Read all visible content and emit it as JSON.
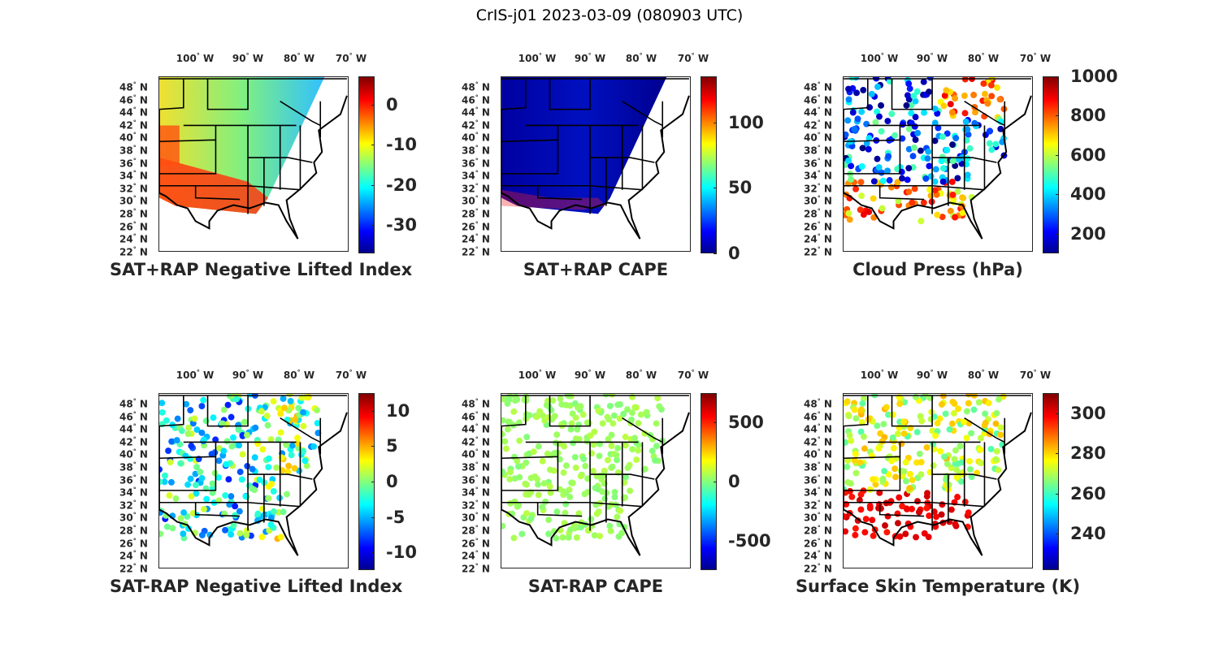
{
  "title": "CrIS-j01 2023-03-09 (080903 UTC)",
  "lat_labels": [
    "48",
    "46",
    "44",
    "42",
    "40",
    "38",
    "36",
    "34",
    "32",
    "30",
    "28",
    "26",
    "24",
    "22"
  ],
  "lat_values": [
    48,
    46,
    44,
    42,
    40,
    38,
    36,
    34,
    32,
    30,
    28,
    26,
    24,
    22
  ],
  "lon_labels": [
    "100",
    "90",
    "80",
    "70"
  ],
  "lon_values": [
    -100,
    -90,
    -80,
    -70
  ],
  "hemisphere": {
    "north": "N",
    "west": "W"
  },
  "colormap": "jet",
  "panels": [
    {
      "title": "SAT+RAP Negative Lifted Index",
      "clim": [
        -37,
        7
      ],
      "ticks": [
        0,
        -10,
        -20,
        -30
      ],
      "tick_labels": [
        "0",
        "-10",
        "-20",
        "-30"
      ],
      "style": "swath",
      "dominant_colors": [
        "#e8e030",
        "#40e0c0",
        "#ff3010"
      ]
    },
    {
      "title": "SAT+RAP CAPE",
      "clim": [
        0,
        135
      ],
      "ticks": [
        100,
        50,
        0
      ],
      "tick_labels": [
        "100",
        "50",
        "0"
      ],
      "style": "swath",
      "dominant_colors": [
        "#00008f",
        "#0010c0"
      ]
    },
    {
      "title": "Cloud Press (hPa)",
      "clim": [
        100,
        1000
      ],
      "ticks": [
        1000,
        800,
        600,
        400,
        200
      ],
      "tick_labels": [
        "1000",
        "800",
        "600",
        "400",
        "200"
      ],
      "style": "dots",
      "dominant_colors": [
        "#0030ff",
        "#40d0ff",
        "#ffd000"
      ]
    },
    {
      "title": "SAT-RAP Negative Lifted Index",
      "clim": [
        -12.5,
        12.5
      ],
      "ticks": [
        10,
        5,
        0,
        -5,
        -10
      ],
      "tick_labels": [
        "10",
        "5",
        "0",
        "-5",
        "-10"
      ],
      "style": "dots",
      "dominant_colors": [
        "#2060ff",
        "#40c0ff",
        "#c0f070"
      ]
    },
    {
      "title": "SAT-RAP CAPE",
      "clim": [
        -750,
        750
      ],
      "ticks": [
        500,
        0,
        -500
      ],
      "tick_labels": [
        "500",
        "0",
        "-500"
      ],
      "style": "dots",
      "dominant_colors": [
        "#80ff80",
        "#70f070"
      ]
    },
    {
      "title": "Surface Skin Temperature (K)",
      "clim": [
        222,
        310
      ],
      "ticks": [
        300,
        280,
        260,
        240
      ],
      "tick_labels": [
        "300",
        "280",
        "260",
        "240"
      ],
      "style": "dots",
      "dominant_colors": [
        "#40e0c0",
        "#ff6000",
        "#e0f040"
      ]
    }
  ]
}
